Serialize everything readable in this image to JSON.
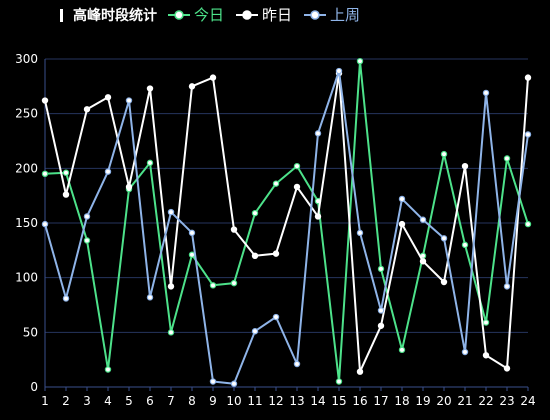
{
  "title": "高峰时段统计",
  "colors": {
    "today": "#4de28a",
    "yesterday": "#ffffff",
    "lastweek": "#8fb4e8",
    "axis": "#3a4f8c",
    "grid": "#26345e",
    "text": "#ffffff"
  },
  "chart_data": {
    "type": "line",
    "title": "高峰时段统计",
    "x": [
      1,
      2,
      3,
      4,
      5,
      6,
      7,
      8,
      9,
      10,
      11,
      12,
      13,
      14,
      15,
      16,
      17,
      18,
      19,
      20,
      21,
      22,
      23,
      24
    ],
    "ylim": [
      0,
      300
    ],
    "yticks": [
      0,
      50,
      100,
      150,
      200,
      250,
      300
    ],
    "grid": true,
    "legend_position": "top",
    "series": [
      {
        "name": "今日",
        "color": "#4de28a",
        "values": [
          195,
          196,
          134,
          16,
          181,
          205,
          50,
          121,
          93,
          95,
          159,
          186,
          202,
          170,
          5,
          298,
          108,
          34,
          120,
          213,
          130,
          59,
          209,
          149
        ]
      },
      {
        "name": "昨日",
        "color": "#ffffff",
        "values": [
          262,
          176,
          254,
          265,
          183,
          273,
          92,
          275,
          283,
          144,
          120,
          122,
          183,
          156,
          287,
          14,
          56,
          149,
          115,
          96,
          202,
          29,
          17,
          283
        ]
      },
      {
        "name": "上周",
        "color": "#8fb4e8",
        "values": [
          149,
          81,
          156,
          197,
          262,
          82,
          160,
          141,
          5,
          3,
          51,
          64,
          21,
          232,
          289,
          141,
          70,
          172,
          153,
          136,
          32,
          269,
          92,
          231
        ]
      }
    ]
  }
}
